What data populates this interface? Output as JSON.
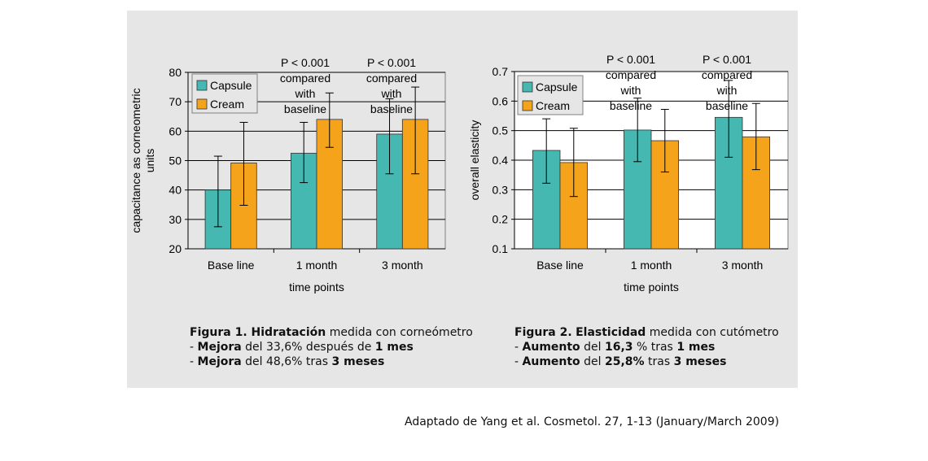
{
  "chart_data": [
    {
      "type": "bar",
      "categories": [
        "Base line",
        "1 month",
        "3 month"
      ],
      "series": [
        {
          "name": "Capsule",
          "values": [
            40,
            52.5,
            59
          ],
          "error_low": [
            27.5,
            42.5,
            45.5
          ],
          "error_high": [
            51.5,
            63,
            71
          ]
        },
        {
          "name": "Cream",
          "values": [
            49.2,
            64,
            64
          ],
          "error_low": [
            34.8,
            54.5,
            45.5
          ],
          "error_high": [
            63,
            73,
            75
          ]
        }
      ],
      "yticks": [
        "20",
        "30",
        "40",
        "50",
        "60",
        "70",
        "80"
      ],
      "ylim": [
        20,
        80
      ],
      "xlabel": "time points",
      "ylabel": "capacitance as corneometric units",
      "legend": "top-left",
      "grid": true,
      "annotations": [
        {
          "category": "1 month",
          "lines": [
            "P  < 0.001",
            "compared",
            "with",
            "baseline"
          ]
        },
        {
          "category": "3 month",
          "lines": [
            "P  < 0.001",
            "compared",
            "with",
            "baseline"
          ]
        }
      ]
    },
    {
      "type": "bar",
      "categories": [
        "Base line",
        "1 month",
        "3 month"
      ],
      "series": [
        {
          "name": "Capsule",
          "values": [
            0.433,
            0.502,
            0.545
          ],
          "error_low": [
            0.322,
            0.395,
            0.41
          ],
          "error_high": [
            0.54,
            0.61,
            0.67
          ]
        },
        {
          "name": "Cream",
          "values": [
            0.392,
            0.466,
            0.479
          ],
          "error_low": [
            0.277,
            0.36,
            0.368
          ],
          "error_high": [
            0.508,
            0.572,
            0.592
          ]
        }
      ],
      "yticks": [
        "0.1",
        "0.2",
        "0.3",
        "0.4",
        "0.5",
        "0.6",
        "0.7"
      ],
      "ylim": [
        0.1,
        0.7
      ],
      "xlabel": "time points",
      "ylabel": "overall elasticity",
      "legend": "top-left",
      "grid": true,
      "annotations": [
        {
          "category": "1 month",
          "lines": [
            "P  < 0.001",
            "compared",
            "with",
            "baseline"
          ]
        },
        {
          "category": "3 month",
          "lines": [
            "P  < 0.001",
            "compared",
            "with",
            "baseline"
          ]
        }
      ]
    }
  ],
  "colors": {
    "capsule": "#44b8b1",
    "cream": "#f5a31a",
    "panel": "#e6e6e6"
  },
  "captions": {
    "fig1": {
      "title_bold": "Figura 1",
      "title_sep": ". ",
      "title_bold2": "Hidratación",
      "title_rest": " medida con corneómetro",
      "line1_dash": "- ",
      "line1_bold": "Mejora",
      "line1_mid": " del  33,6% después de ",
      "line1_bold2": "1 mes",
      "line2_dash": "- ",
      "line2_bold": "Mejora",
      "line2_mid": " del  48,6% tras ",
      "line2_bold2": "3 meses"
    },
    "fig2": {
      "title_bold": "Figura 2.",
      "title_sep": " ",
      "title_bold2": "Elasticidad",
      "title_rest": " medida con cutómetro",
      "line1_dash": "- ",
      "line1_bold": "Aumento",
      "line1_mid": " del ",
      "line1_bold2": "16,3",
      "line1_rest": " % tras ",
      "line1_bold3": "1 mes",
      "line2_dash": "- ",
      "line2_bold": "Aumento",
      "line2_mid": " del ",
      "line2_bold2": "25,8%",
      "line2_rest": " tras ",
      "line2_bold3": "3 meses"
    }
  },
  "source": "Adaptado de Yang et al. Cosmetol. 27, 1-13 (January/March 2009)"
}
